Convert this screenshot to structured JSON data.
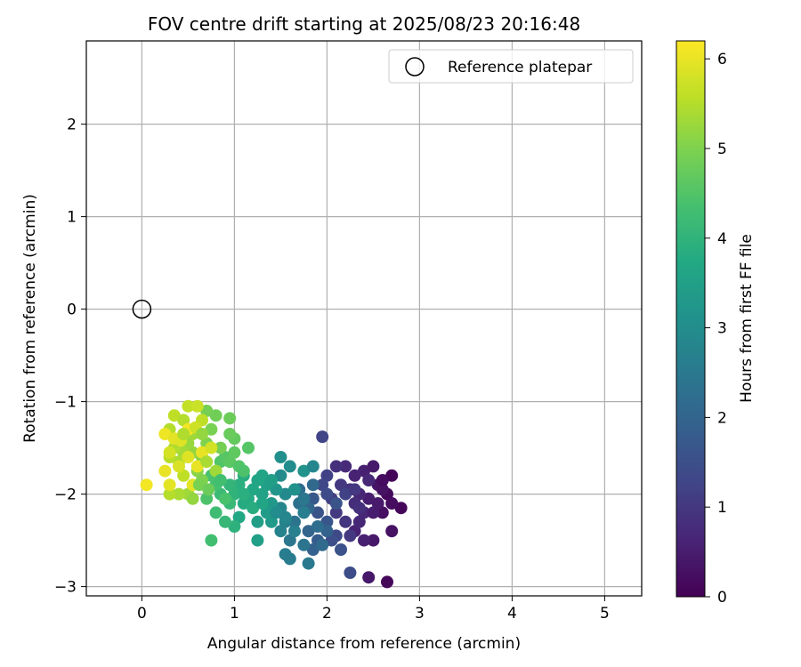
{
  "chart_data": {
    "type": "scatter",
    "title": "FOV centre drift starting at 2025/08/23 20:16:48",
    "xlabel": "Angular distance from reference (arcmin)",
    "ylabel": "Rotation from reference (arcmin)",
    "xlim": [
      -0.6,
      5.4
    ],
    "ylim": [
      -3.1,
      2.9
    ],
    "xticks": [
      "0",
      "1",
      "2",
      "3",
      "4",
      "5"
    ],
    "yticks": [
      "−3",
      "−2",
      "−1",
      "0",
      "1",
      "2"
    ],
    "grid": true,
    "legend": {
      "placement": "top-right",
      "entries": [
        "Reference platepar"
      ]
    },
    "reference_point": {
      "x": 0,
      "y": 0
    },
    "colorbar": {
      "label": "Hours from first FF file",
      "range": [
        0,
        6.2
      ],
      "ticks": [
        "0",
        "1",
        "2",
        "3",
        "4",
        "5",
        "6"
      ],
      "colormap": "viridis"
    },
    "points": [
      [
        2.7,
        -1.8,
        0.05
      ],
      [
        2.8,
        -2.15,
        0.1
      ],
      [
        2.65,
        -2.0,
        0.15
      ],
      [
        2.7,
        -2.1,
        0.2
      ],
      [
        2.6,
        -2.2,
        0.25
      ],
      [
        2.7,
        -2.4,
        0.3
      ],
      [
        2.5,
        -2.5,
        0.4
      ],
      [
        2.55,
        -1.9,
        0.35
      ],
      [
        2.45,
        -2.05,
        0.5
      ],
      [
        2.4,
        -1.75,
        0.55
      ],
      [
        2.3,
        -1.8,
        0.6
      ],
      [
        2.35,
        -2.0,
        0.65
      ],
      [
        2.5,
        -1.7,
        0.45
      ],
      [
        2.6,
        -1.95,
        0.3
      ],
      [
        2.4,
        -2.2,
        0.7
      ],
      [
        2.3,
        -2.1,
        0.8
      ],
      [
        2.25,
        -1.95,
        0.9
      ],
      [
        2.2,
        -2.3,
        0.95
      ],
      [
        2.15,
        -1.9,
        1.0
      ],
      [
        2.1,
        -2.2,
        1.05
      ],
      [
        2.05,
        -2.05,
        1.1
      ],
      [
        2.2,
        -1.7,
        0.75
      ],
      [
        2.1,
        -1.7,
        0.85
      ],
      [
        2.3,
        -2.4,
        0.6
      ],
      [
        2.4,
        -2.5,
        0.55
      ],
      [
        2.45,
        -2.9,
        0.4
      ],
      [
        2.65,
        -2.95,
        0.1
      ],
      [
        2.35,
        -2.3,
        0.7
      ],
      [
        2.5,
        -2.2,
        0.5
      ],
      [
        2.0,
        -1.8,
        1.2
      ],
      [
        1.95,
        -1.9,
        1.3
      ],
      [
        2.0,
        -2.0,
        1.4
      ],
      [
        1.95,
        -1.38,
        1.25
      ],
      [
        2.1,
        -2.45,
        1.35
      ],
      [
        2.05,
        -2.5,
        1.5
      ],
      [
        2.15,
        -2.6,
        1.55
      ],
      [
        2.25,
        -2.85,
        1.45
      ],
      [
        1.9,
        -2.2,
        1.6
      ],
      [
        1.85,
        -2.05,
        1.7
      ],
      [
        2.0,
        -2.3,
        1.65
      ],
      [
        1.9,
        -2.5,
        1.8
      ],
      [
        1.85,
        -2.6,
        1.9
      ],
      [
        1.8,
        -2.4,
        2.0
      ],
      [
        1.8,
        -2.15,
        2.05
      ],
      [
        1.85,
        -1.9,
        2.1
      ],
      [
        1.7,
        -1.95,
        2.2
      ],
      [
        1.7,
        -2.1,
        2.3
      ],
      [
        1.65,
        -2.3,
        2.35
      ],
      [
        1.75,
        -2.55,
        2.4
      ],
      [
        1.8,
        -2.75,
        2.5
      ],
      [
        1.6,
        -2.5,
        2.45
      ],
      [
        1.55,
        -2.65,
        2.6
      ],
      [
        1.6,
        -2.7,
        2.55
      ],
      [
        1.55,
        -2.3,
        2.7
      ],
      [
        1.5,
        -2.4,
        2.75
      ],
      [
        1.5,
        -2.15,
        2.8
      ],
      [
        1.55,
        -2.0,
        2.9
      ],
      [
        1.5,
        -1.8,
        2.95
      ],
      [
        1.6,
        -1.7,
        3.0
      ],
      [
        1.5,
        -1.6,
        3.05
      ],
      [
        1.65,
        -1.95,
        3.1
      ],
      [
        1.75,
        -1.75,
        3.15
      ],
      [
        1.85,
        -1.7,
        2.85
      ],
      [
        1.45,
        -1.95,
        3.2
      ],
      [
        1.4,
        -2.1,
        3.3
      ],
      [
        1.4,
        -2.3,
        3.35
      ],
      [
        1.35,
        -2.2,
        3.4
      ],
      [
        1.35,
        -1.9,
        3.5
      ],
      [
        1.3,
        -2.0,
        3.55
      ],
      [
        1.3,
        -1.8,
        3.6
      ],
      [
        1.25,
        -2.3,
        3.45
      ],
      [
        1.25,
        -2.5,
        3.5
      ],
      [
        1.2,
        -1.95,
        3.7
      ],
      [
        1.15,
        -2.05,
        3.75
      ],
      [
        1.1,
        -2.1,
        3.8
      ],
      [
        1.05,
        -2.25,
        3.7
      ],
      [
        1.1,
        -1.8,
        3.85
      ],
      [
        1.05,
        -1.9,
        3.9
      ],
      [
        1.0,
        -2.0,
        4.0
      ],
      [
        0.95,
        -1.9,
        4.05
      ],
      [
        1.0,
        -2.35,
        3.95
      ],
      [
        0.9,
        -2.3,
        4.1
      ],
      [
        0.95,
        -2.1,
        4.15
      ],
      [
        0.85,
        -2.0,
        4.2
      ],
      [
        0.8,
        -2.2,
        4.25
      ],
      [
        0.75,
        -2.5,
        4.3
      ],
      [
        0.8,
        -1.9,
        4.35
      ],
      [
        0.75,
        -1.8,
        4.4
      ],
      [
        0.7,
        -2.05,
        4.45
      ],
      [
        0.85,
        -1.65,
        4.5
      ],
      [
        0.9,
        -1.6,
        4.55
      ],
      [
        0.95,
        -1.65,
        4.6
      ],
      [
        1.0,
        -1.55,
        4.65
      ],
      [
        1.05,
        -1.7,
        4.5
      ],
      [
        1.1,
        -1.75,
        4.45
      ],
      [
        1.15,
        -1.5,
        4.55
      ],
      [
        1.0,
        -1.4,
        4.7
      ],
      [
        0.95,
        -1.35,
        4.75
      ],
      [
        0.95,
        -1.18,
        4.8
      ],
      [
        0.8,
        -1.15,
        4.85
      ],
      [
        0.7,
        -1.1,
        4.9
      ],
      [
        0.75,
        -1.3,
        4.95
      ],
      [
        0.85,
        -1.5,
        4.9
      ],
      [
        0.7,
        -1.45,
        5.0
      ],
      [
        0.65,
        -1.6,
        5.05
      ],
      [
        0.6,
        -1.75,
        5.1
      ],
      [
        0.65,
        -1.85,
        5.0
      ],
      [
        0.55,
        -1.55,
        5.2
      ],
      [
        0.5,
        -1.45,
        5.25
      ],
      [
        0.55,
        -1.35,
        5.3
      ],
      [
        0.45,
        -1.55,
        5.35
      ],
      [
        0.4,
        -1.65,
        5.4
      ],
      [
        0.35,
        -1.5,
        5.45
      ],
      [
        0.3,
        -1.3,
        5.5
      ],
      [
        0.3,
        -1.6,
        5.55
      ],
      [
        0.35,
        -1.15,
        5.6
      ],
      [
        0.45,
        -1.2,
        5.5
      ],
      [
        0.5,
        -1.05,
        5.65
      ],
      [
        0.6,
        -1.05,
        5.7
      ],
      [
        0.65,
        -1.2,
        5.6
      ],
      [
        0.5,
        -2.0,
        5.3
      ],
      [
        0.55,
        -2.05,
        5.2
      ],
      [
        0.4,
        -2.0,
        5.4
      ],
      [
        0.3,
        -2.0,
        5.5
      ],
      [
        0.45,
        -1.8,
        5.6
      ],
      [
        0.4,
        -1.7,
        5.85
      ],
      [
        0.5,
        -1.6,
        5.9
      ],
      [
        0.55,
        -1.9,
        5.95
      ],
      [
        0.6,
        -1.7,
        6.0
      ],
      [
        0.3,
        -1.9,
        5.95
      ],
      [
        0.25,
        -1.75,
        6.0
      ],
      [
        0.25,
        -1.35,
        6.05
      ],
      [
        0.35,
        -1.4,
        5.95
      ],
      [
        0.5,
        -1.3,
        6.1
      ],
      [
        0.65,
        -1.55,
        6.0
      ],
      [
        0.75,
        -1.5,
        5.8
      ],
      [
        0.05,
        -1.9,
        6.1
      ],
      [
        0.42,
        -1.42,
        5.9
      ],
      [
        0.58,
        -1.28,
        5.75
      ],
      [
        0.7,
        -1.65,
        5.4
      ],
      [
        0.8,
        -1.75,
        5.3
      ],
      [
        0.62,
        -1.9,
        4.95
      ],
      [
        0.72,
        -1.95,
        4.8
      ],
      [
        0.9,
        -2.05,
        4.4
      ],
      [
        1.2,
        -2.15,
        3.85
      ],
      [
        1.3,
        -2.1,
        3.65
      ],
      [
        1.45,
        -2.2,
        3.0
      ],
      [
        1.65,
        -2.4,
        2.65
      ],
      [
        1.75,
        -2.2,
        2.6
      ],
      [
        1.95,
        -2.55,
        2.15
      ],
      [
        2.0,
        -2.4,
        1.95
      ],
      [
        2.1,
        -2.1,
        1.6
      ],
      [
        2.2,
        -2.0,
        1.2
      ],
      [
        2.3,
        -1.95,
        1.0
      ],
      [
        2.45,
        -1.85,
        0.7
      ],
      [
        2.55,
        -2.1,
        0.45
      ],
      [
        2.6,
        -1.85,
        0.2
      ],
      [
        2.35,
        -2.15,
        0.85
      ],
      [
        2.25,
        -2.45,
        1.0
      ],
      [
        1.9,
        -2.35,
        2.2
      ],
      [
        1.75,
        -2.05,
        2.45
      ],
      [
        1.55,
        -2.25,
        2.85
      ],
      [
        1.4,
        -1.85,
        3.45
      ],
      [
        1.25,
        -1.85,
        3.65
      ],
      [
        1.1,
        -2.0,
        3.9
      ],
      [
        0.85,
        -1.85,
        4.3
      ],
      [
        0.65,
        -1.35,
        5.2
      ],
      [
        0.45,
        -1.35,
        5.45
      ],
      [
        0.3,
        -1.55,
        5.8
      ]
    ]
  }
}
